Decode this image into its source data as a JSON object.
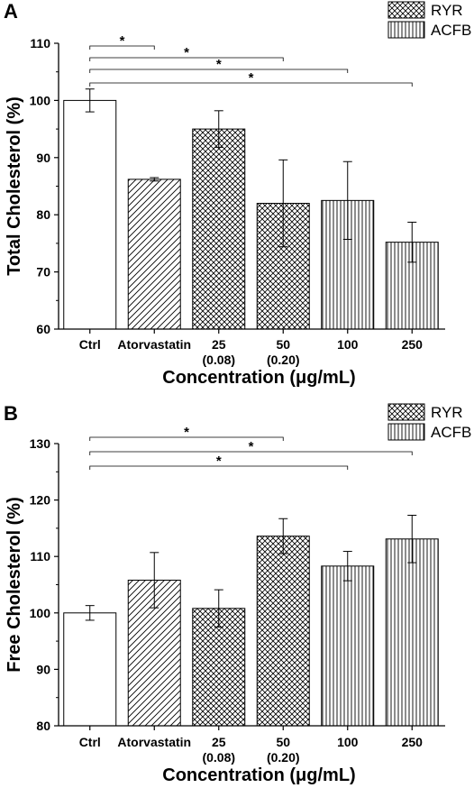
{
  "chart_data": [
    {
      "type": "bar",
      "panel_label": "A",
      "categories": [
        "Ctrl",
        "Atorvastatin",
        "25",
        "50",
        "100",
        "250"
      ],
      "category_sublabels": [
        "",
        "",
        "(0.08)",
        "(0.20)",
        "",
        ""
      ],
      "values": [
        100,
        86.2,
        95.0,
        82.0,
        82.5,
        75.2
      ],
      "errors": [
        2.0,
        0.3,
        3.2,
        7.6,
        6.8,
        3.5
      ],
      "patterns": [
        "none",
        "diagonal",
        "crosshatch",
        "crosshatch",
        "vertical",
        "vertical"
      ],
      "ylim": [
        60,
        110
      ],
      "yticks": [
        "60",
        "70",
        "80",
        "90",
        "100",
        "110"
      ],
      "ylabel": "Total Cholesterol (%)",
      "xlabel": "Concentration (μg/mL)",
      "legend": [
        {
          "label": "RYR",
          "pattern": "crosshatch"
        },
        {
          "label": "ACFB",
          "pattern": "vertical"
        }
      ],
      "significance": [
        {
          "from": 0,
          "to": 1,
          "label": "*"
        },
        {
          "from": 0,
          "to": 3,
          "label": "*"
        },
        {
          "from": 0,
          "to": 4,
          "label": "*"
        },
        {
          "from": 0,
          "to": 5,
          "label": "*"
        }
      ]
    },
    {
      "type": "bar",
      "panel_label": "B",
      "categories": [
        "Ctrl",
        "Atorvastatin",
        "25",
        "50",
        "100",
        "250"
      ],
      "category_sublabels": [
        "",
        "",
        "(0.08)",
        "(0.20)",
        "",
        ""
      ],
      "values": [
        100,
        105.8,
        100.8,
        113.6,
        108.3,
        113.1
      ],
      "errors": [
        1.3,
        4.9,
        3.3,
        3.1,
        2.6,
        4.2
      ],
      "patterns": [
        "none",
        "diagonal",
        "crosshatch",
        "crosshatch",
        "vertical",
        "vertical"
      ],
      "ylim": [
        80,
        130
      ],
      "yticks": [
        "80",
        "90",
        "100",
        "110",
        "120",
        "130"
      ],
      "ylabel": "Free Cholesterol (%)",
      "xlabel": "Concentration (μg/mL)",
      "legend": [
        {
          "label": "RYR",
          "pattern": "crosshatch"
        },
        {
          "label": "ACFB",
          "pattern": "vertical"
        }
      ],
      "significance": [
        {
          "from": 0,
          "to": 3,
          "label": "*"
        },
        {
          "from": 0,
          "to": 5,
          "label": "*"
        },
        {
          "from": 0,
          "to": 4,
          "label": "*"
        }
      ]
    }
  ]
}
